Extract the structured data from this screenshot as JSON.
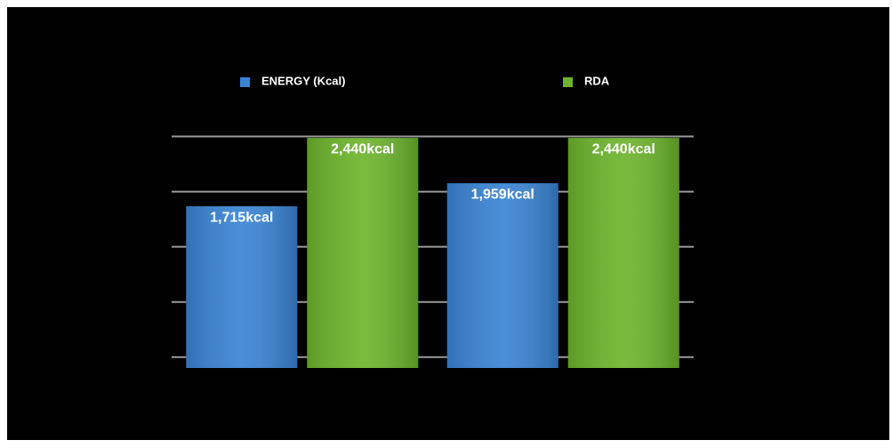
{
  "chart_data": {
    "type": "bar",
    "categories": [
      null,
      null
    ],
    "series": [
      {
        "name": "ENERGY (Kcal)",
        "color": "#3a84d4",
        "values": [
          1715,
          1959
        ],
        "value_labels": [
          "1,715kcal",
          "1,959kcal"
        ]
      },
      {
        "name": "RDA",
        "color": "#6cb52c",
        "values": [
          2440,
          2440
        ],
        "value_labels": [
          "2,440kcal",
          "2,440kcal"
        ]
      }
    ],
    "ylim": [
      0,
      2460
    ],
    "yticks": [
      115,
      700,
      1285,
      1870,
      2455
    ],
    "grid": true
  }
}
